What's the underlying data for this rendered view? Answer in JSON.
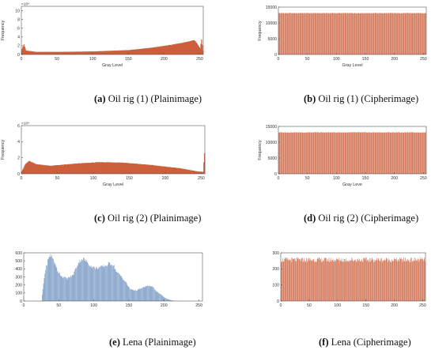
{
  "colors": {
    "cipher": "#cc5f3b",
    "plain_rig": "#cc5f3b",
    "plain_lena": "#6f93c0",
    "axis": "#555555"
  },
  "chart_data": [
    {
      "type": "bar",
      "caption": {
        "letter": "(a)",
        "text": "Oil rig (1) (Plainimage)"
      },
      "xlabel": "Gray Level",
      "ylabel": "Frequency",
      "exponent": "×10⁴",
      "xlim": [
        0,
        255
      ],
      "ylim": [
        0,
        11
      ],
      "xticks": [
        0,
        50,
        100,
        150,
        200,
        250
      ],
      "yticks": [
        0,
        2,
        4,
        6,
        8,
        10
      ],
      "profile": [
        [
          0,
          1.2
        ],
        [
          3,
          2.3
        ],
        [
          6,
          0.9
        ],
        [
          20,
          0.6
        ],
        [
          50,
          0.6
        ],
        [
          100,
          0.7
        ],
        [
          150,
          1.0
        ],
        [
          180,
          1.5
        ],
        [
          210,
          2.2
        ],
        [
          230,
          2.8
        ],
        [
          243,
          3.3
        ],
        [
          247,
          2.4
        ],
        [
          251,
          1.4
        ],
        [
          253,
          3.5
        ],
        [
          255,
          0.8
        ]
      ]
    },
    {
      "type": "bar",
      "caption": {
        "letter": "(b)",
        "text": "Oil rig (1) (Cipherimage)"
      },
      "xlabel": "Gray Level",
      "ylabel": "Frequency",
      "exponent": "",
      "xlim": [
        0,
        255
      ],
      "ylim": [
        0,
        15000
      ],
      "xticks": [
        0,
        50,
        100,
        150,
        200,
        250
      ],
      "yticks": [
        0,
        5000,
        10000,
        15000
      ],
      "profile": [
        [
          0,
          13100
        ],
        [
          255,
          13100
        ]
      ]
    },
    {
      "type": "bar",
      "caption": {
        "letter": "(c)",
        "text": "Oil rig (2) (Plainimage)"
      },
      "xlabel": "Gray Level",
      "ylabel": "Frequency",
      "exponent": "×10⁴",
      "xlim": [
        0,
        255
      ],
      "ylim": [
        0,
        6
      ],
      "xticks": [
        0,
        50,
        100,
        150,
        200,
        250
      ],
      "yticks": [
        0,
        2,
        4,
        6
      ],
      "profile": [
        [
          0,
          0.3
        ],
        [
          5,
          1.2
        ],
        [
          10,
          1.6
        ],
        [
          20,
          1.2
        ],
        [
          40,
          1.0
        ],
        [
          80,
          1.3
        ],
        [
          110,
          1.45
        ],
        [
          140,
          1.4
        ],
        [
          180,
          1.1
        ],
        [
          220,
          0.7
        ],
        [
          245,
          0.3
        ],
        [
          253,
          0.25
        ],
        [
          255,
          2.6
        ]
      ]
    },
    {
      "type": "bar",
      "caption": {
        "letter": "(d)",
        "text": "Oil rig (2) (Cipherimage)"
      },
      "xlabel": "Gray Leve",
      "ylabel": "Frequency",
      "exponent": "",
      "xlim": [
        0,
        255
      ],
      "ylim": [
        0,
        15000
      ],
      "xticks": [
        0,
        50,
        100,
        150,
        200,
        250
      ],
      "yticks": [
        0,
        5000,
        10000,
        15000
      ],
      "profile": [
        [
          0,
          13100
        ],
        [
          255,
          13100
        ]
      ]
    },
    {
      "type": "bar",
      "caption": {
        "letter": "(e)",
        "text": "Lena (Plainimage)"
      },
      "xlabel": "",
      "ylabel": "",
      "exponent": "",
      "xlim": [
        0,
        255
      ],
      "ylim": [
        0,
        600
      ],
      "xticks": [
        0,
        50,
        100,
        150,
        200,
        250
      ],
      "yticks": [
        0,
        100,
        200,
        300,
        400,
        500,
        600
      ],
      "profile": [
        [
          0,
          0
        ],
        [
          25,
          0
        ],
        [
          27,
          150
        ],
        [
          30,
          350
        ],
        [
          34,
          500
        ],
        [
          38,
          580
        ],
        [
          42,
          520
        ],
        [
          48,
          380
        ],
        [
          55,
          300
        ],
        [
          62,
          280
        ],
        [
          70,
          320
        ],
        [
          78,
          480
        ],
        [
          84,
          530
        ],
        [
          90,
          490
        ],
        [
          96,
          430
        ],
        [
          103,
          410
        ],
        [
          110,
          420
        ],
        [
          117,
          440
        ],
        [
          123,
          470
        ],
        [
          128,
          450
        ],
        [
          133,
          360
        ],
        [
          140,
          300
        ],
        [
          146,
          230
        ],
        [
          152,
          150
        ],
        [
          160,
          130
        ],
        [
          166,
          150
        ],
        [
          174,
          180
        ],
        [
          180,
          190
        ],
        [
          185,
          170
        ],
        [
          190,
          120
        ],
        [
          196,
          80
        ],
        [
          202,
          40
        ],
        [
          207,
          20
        ],
        [
          212,
          8
        ],
        [
          216,
          0
        ],
        [
          255,
          0
        ]
      ]
    },
    {
      "type": "bar",
      "caption": {
        "letter": "(f)",
        "text": "Lena (Cipherimage)"
      },
      "xlabel": "",
      "ylabel": "",
      "exponent": "",
      "xlim": [
        0,
        255
      ],
      "ylim": [
        0,
        300
      ],
      "xticks": [
        0,
        50,
        100,
        150,
        200,
        250
      ],
      "yticks": [
        0,
        100,
        200,
        300
      ],
      "profile": [
        [
          0,
          256
        ],
        [
          255,
          256
        ]
      ]
    }
  ]
}
